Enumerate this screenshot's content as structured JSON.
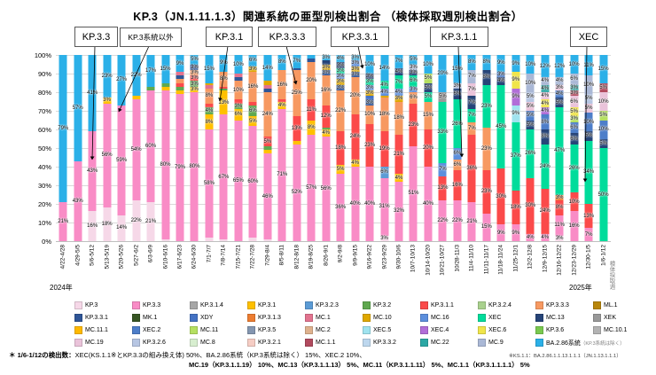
{
  "title": "KP.3（JN.1.11.1.3）関連系統の亜型別検出割合 （検体採取週別検出割合）",
  "annotations": [
    {
      "label": "KP.3.3"
    },
    {
      "label": "KP.3系統以外"
    },
    {
      "label": "KP.3.1"
    },
    {
      "label": "KP.3.3.3"
    },
    {
      "label": "KP.3.3.1"
    },
    {
      "label": "KP.3.1.1"
    },
    {
      "label": "XEC"
    }
  ],
  "y_axis": {
    "ticks": [
      "100%",
      "90%",
      "80%",
      "70%",
      "60%",
      "50%",
      "40%",
      "30%",
      "20%",
      "10%",
      "0%"
    ]
  },
  "x_axis": {
    "year_left": "2024年",
    "year_right": "2025年",
    "axis_title": "検体採取週"
  },
  "footnote": {
    "head": "＊ 1/6-1/12の検出数：",
    "line1": "XEC(KS.1.1※とKP.3.3の組み換え体) 50%、BA.2.86系統（KP.3系統は除く） 15%、XEC.2 10%、",
    "line2": "MC.19（KP.3.1.1.19） 10%、MC.13（KP.3.1.1.13） 5%、MC.11（KP.3.1.1.11） 5%、MC.1.1（KP.3.1.1.1.1） 5%",
    "note_right": "※KS.1.1：BA.2.86.1.1.13.1.1.1（JN.1.13.1.1.1）"
  },
  "chart_data": {
    "type": "bar",
    "subtype": "100%-stacked-column",
    "ylim": [
      0,
      100
    ],
    "grid": true,
    "legend_position": "bottom",
    "categories": [
      "4/22-4/28",
      "4/29-5/5",
      "5/6-5/12",
      "5/13-5/19",
      "5/20-5/26",
      "5/27-6/2",
      "6/3-6/9",
      "6/10-6/16",
      "6/17-6/23",
      "6/24-6/30",
      "7/1-7/7",
      "7/8-7/14",
      "7/15-7/21",
      "7/22-7/28",
      "7/29-8/4",
      "8/5-8/11",
      "8/12-8/18",
      "8/19-8/25",
      "8/26-9/1",
      "9/2-9/8",
      "9/9-9/15",
      "9/16-9/22",
      "9/23-9/29",
      "9/30-10/6",
      "10/7-10/13",
      "10/14-10/20",
      "10/21-10/27",
      "10/28-11/3",
      "11/4-11/10",
      "11/11-11/17",
      "11/18-11/24",
      "11/25-12/1",
      "12/2-12/8",
      "12/9-12/15",
      "12/16-12/22",
      "12/23-12/29",
      "12/30-1/5",
      "1/6-1/12"
    ],
    "series_legend": [
      {
        "name": "KP.3",
        "color": "#f6d8e8"
      },
      {
        "name": "KP.3.3",
        "color": "#f98cc6"
      },
      {
        "name": "KP.3.1.4",
        "color": "#a6a6a6"
      },
      {
        "name": "KP.3.1",
        "color": "#ffc000"
      },
      {
        "name": "KP.3.2.3",
        "color": "#5b9bd5"
      },
      {
        "name": "KP.3.2",
        "color": "#5fa84f"
      },
      {
        "name": "KP.3.1.1",
        "color": "#fb4a4a"
      },
      {
        "name": "KP.3.2.4",
        "color": "#a9d18e"
      },
      {
        "name": "KP.3.3.3",
        "color": "#f79961"
      },
      {
        "name": "ML.1",
        "color": "#b8860b"
      },
      {
        "name": "KP.3.3.1",
        "color": "#2f5597"
      },
      {
        "name": "MK.1",
        "color": "#375623"
      },
      {
        "name": "XDY",
        "color": "#4472c4"
      },
      {
        "name": "KP.3.1.3",
        "color": "#ed7d31"
      },
      {
        "name": "MC.1",
        "color": "#e2738f"
      },
      {
        "name": "MC.10",
        "color": "#dfa800"
      },
      {
        "name": "MC.16",
        "color": "#5c8fdd"
      },
      {
        "name": "XEC",
        "color": "#00dc9b"
      },
      {
        "name": "MC.13",
        "color": "#264478"
      },
      {
        "name": "XEK",
        "color": "#999999"
      },
      {
        "name": "MC.11.1",
        "color": "#ffb900"
      },
      {
        "name": "XEC.2",
        "color": "#4d7ec9"
      },
      {
        "name": "MC.11",
        "color": "#b5e061"
      },
      {
        "name": "KP.3.5",
        "color": "#8496b0"
      },
      {
        "name": "MC.2",
        "color": "#dfb28e"
      },
      {
        "name": "XEC.5",
        "color": "#9fe3ef"
      },
      {
        "name": "XEC.4",
        "color": "#b16dd8"
      },
      {
        "name": "XEC.6",
        "color": "#f0e54a"
      },
      {
        "name": "KP.3.6",
        "color": "#79c94f"
      },
      {
        "name": "MC.10.1",
        "color": "#b3b3b3"
      },
      {
        "name": "MC.19",
        "color": "#eac3da"
      },
      {
        "name": "KP.3.2.6",
        "color": "#b7c6e3"
      },
      {
        "name": "MC.8",
        "color": "#d7eecf"
      },
      {
        "name": "KP.3.2.1",
        "color": "#f6cdc4"
      },
      {
        "name": "MC.1.1",
        "color": "#b14a5e"
      },
      {
        "name": "KP.3.3.2",
        "color": "#bdd7ee"
      },
      {
        "name": "MC.22",
        "color": "#2ba7a4"
      },
      {
        "name": "MC.9",
        "color": "#aab8d6"
      },
      {
        "name": "BA.2.86系統",
        "color": "#2bb0e8",
        "sub": "（KP.3系統は除く）"
      }
    ],
    "bars": [
      [
        [
          "KP.3.3",
          21
        ],
        [
          "BA.2.86系統",
          79
        ]
      ],
      [
        [
          "KP.3.3",
          43
        ],
        [
          "BA.2.86系統",
          57
        ]
      ],
      [
        [
          "KP.3",
          16
        ],
        [
          "KP.3.3",
          43
        ],
        [
          "BA.2.86系統",
          41
        ]
      ],
      [
        [
          "KP.3",
          18
        ],
        [
          "KP.3.3",
          56
        ],
        [
          "KP.3.1",
          3
        ],
        [
          "BA.2.86系統",
          23
        ]
      ],
      [
        [
          "KP.3",
          14
        ],
        [
          "KP.3.3",
          59
        ],
        [
          "BA.2.86系統",
          27
        ]
      ],
      [
        [
          "KP.3",
          22
        ],
        [
          "KP.3.3",
          54
        ],
        [
          "KP.3.1",
          2
        ],
        [
          "BA.2.86系統",
          22
        ]
      ],
      [
        [
          "KP.3",
          21
        ],
        [
          "KP.3.3",
          60
        ],
        [
          "KP.3.2",
          2
        ],
        [
          "BA.2.86系統",
          17
        ]
      ],
      [
        [
          "KP.3",
          1
        ],
        [
          "KP.3.3",
          80
        ],
        [
          "KP.3.1",
          2
        ],
        [
          "KP.3.2",
          2
        ],
        [
          "BA.2.86系統",
          15
        ]
      ],
      [
        [
          "KP.3.3",
          79
        ],
        [
          "KP.3.1",
          2
        ],
        [
          "KP.3.2",
          2
        ],
        [
          "KP.3.1.1",
          2
        ],
        [
          "KP.3.3.3",
          2
        ],
        [
          "KP.3.3.1",
          2
        ],
        [
          "MC.1",
          2
        ],
        [
          "BA.2.86系統",
          9
        ]
      ],
      [
        [
          "KP.3.3",
          80
        ],
        [
          "KP.3.1",
          3
        ],
        [
          "KP.3.2",
          3
        ],
        [
          "KP.3.1.1",
          3
        ],
        [
          "KP.3.3.3",
          3
        ],
        [
          "KP.3.3.1",
          3
        ],
        [
          "BA.2.86系統",
          5
        ]
      ],
      [
        [
          "KP.3",
          2
        ],
        [
          "KP.3.3",
          58
        ],
        [
          "KP.3.1",
          8
        ],
        [
          "KP.3.2",
          4
        ],
        [
          "KP.3.1.1",
          2
        ],
        [
          "KP.3.3.3",
          8
        ],
        [
          "MC.1",
          2
        ],
        [
          "MC.10",
          1
        ],
        [
          "BA.2.86系統",
          15
        ]
      ],
      [
        [
          "KP.3",
          1
        ],
        [
          "KP.3.3",
          67
        ],
        [
          "KP.3.1",
          13
        ],
        [
          "KP.3.2",
          1
        ],
        [
          "KP.3.1.1",
          1
        ],
        [
          "KP.3.3.3",
          8
        ],
        [
          "BA.2.86系統",
          9
        ]
      ],
      [
        [
          "KP.3.3",
          65
        ],
        [
          "KP.3.1",
          6
        ],
        [
          "KP.3.2",
          3
        ],
        [
          "KP.3.1.1",
          2
        ],
        [
          "KP.3.3.3",
          10
        ],
        [
          "KP.3.3.1",
          2
        ],
        [
          "MC.1",
          2
        ],
        [
          "BA.2.86系統",
          10
        ]
      ],
      [
        [
          "KP.3",
          2
        ],
        [
          "KP.3.3",
          60
        ],
        [
          "KP.3.1",
          5
        ],
        [
          "KP.3.2",
          6
        ],
        [
          "KP.3.1.1",
          2
        ],
        [
          "KP.3.3.3",
          16
        ],
        [
          "MC.10",
          3
        ],
        [
          "BA.2.86系統",
          6
        ]
      ],
      [
        [
          "KP.3",
          1
        ],
        [
          "KP.3.3",
          46
        ],
        [
          "KP.3.1",
          2
        ],
        [
          "KP.3.2",
          2
        ],
        [
          "KP.3.1.1",
          5
        ],
        [
          "KP.3.3.3",
          24
        ],
        [
          "KP.3.3.1",
          2
        ],
        [
          "MC.1",
          2
        ],
        [
          "MC.10",
          2
        ],
        [
          "BA.2.86系統",
          14
        ]
      ],
      [
        [
          "KP.3.3",
          71
        ],
        [
          "KP.3.1",
          4
        ],
        [
          "KP.3.1.1",
          1
        ],
        [
          "KP.3.3.3",
          16
        ],
        [
          "BA.2.86系統",
          8
        ]
      ],
      [
        [
          "KP.3.3",
          52
        ],
        [
          "KP.3.1",
          2
        ],
        [
          "KP.3.1.1",
          13
        ],
        [
          "KP.3.3.3",
          25
        ],
        [
          "KP.3.3.1",
          1
        ],
        [
          "BA.2.86系統",
          7
        ]
      ],
      [
        [
          "KP.3.3",
          57
        ],
        [
          "KP.3.1",
          8
        ],
        [
          "KP.3.1.1",
          11
        ],
        [
          "KP.3.3.3",
          20
        ],
        [
          "KP.3.3.1",
          2
        ],
        [
          "BA.2.86系統",
          2
        ]
      ],
      [
        [
          "KP.3.3",
          56
        ],
        [
          "KP.3.1",
          4
        ],
        [
          "KP.3.2",
          1
        ],
        [
          "KP.3.1.1",
          12
        ],
        [
          "KP.3.3.3",
          16
        ],
        [
          "KP.3.3.1",
          3
        ],
        [
          "MC.10",
          3
        ],
        [
          "MC.13",
          2
        ],
        [
          "BA.2.86系統",
          3
        ]
      ],
      [
        [
          "KP.3.3",
          36
        ],
        [
          "KP.3.1",
          5
        ],
        [
          "KP.3.1.1",
          18
        ],
        [
          "KP.3.3.3",
          22
        ],
        [
          "KP.3.3.1",
          3
        ],
        [
          "MC.10",
          3
        ],
        [
          "MC.16",
          3
        ],
        [
          "XEC",
          3
        ],
        [
          "MC.13",
          3
        ],
        [
          "BA.2.86系統",
          4
        ]
      ],
      [
        [
          "KP.3.3",
          40
        ],
        [
          "KP.3.1",
          4
        ],
        [
          "KP.3.1.1",
          24
        ],
        [
          "KP.3.3.3",
          20
        ],
        [
          "KP.3.3.1",
          3
        ],
        [
          "MC.10",
          3
        ],
        [
          "MC.16",
          3
        ],
        [
          "BA.2.86系統",
          3
        ]
      ],
      [
        [
          "KP.3.3",
          40
        ],
        [
          "KP.3.1.1",
          23
        ],
        [
          "KP.3.3.3",
          10
        ],
        [
          "KP.3.3.1",
          3
        ],
        [
          "XDY",
          2
        ],
        [
          "MC.10",
          3
        ],
        [
          "MC.16",
          3
        ],
        [
          "XEC",
          3
        ],
        [
          "MC.13",
          3
        ],
        [
          "BA.2.86系統",
          10
        ]
      ],
      [
        [
          "KP.3",
          3
        ],
        [
          "KP.3.3",
          31
        ],
        [
          "KP.3.2.3",
          6
        ],
        [
          "KP.3.1.1",
          19
        ],
        [
          "KP.3.3.3",
          18
        ],
        [
          "MC.10",
          1
        ],
        [
          "MC.16",
          4
        ],
        [
          "XEC",
          4
        ],
        [
          "BA.2.86系統",
          14
        ]
      ],
      [
        [
          "KP.3.3",
          32
        ],
        [
          "KP.3.1",
          4
        ],
        [
          "KP.3.1.1",
          21
        ],
        [
          "KP.3.3.3",
          18
        ],
        [
          "MC.10",
          3
        ],
        [
          "MC.16",
          4
        ],
        [
          "XEC",
          7
        ],
        [
          "MC.13",
          4
        ],
        [
          "BA.2.86系統",
          7
        ]
      ],
      [
        [
          "KP.3.3",
          51
        ],
        [
          "KP.3.1.1",
          23
        ],
        [
          "KP.3.3.3",
          6
        ],
        [
          "MC.16",
          3
        ],
        [
          "XEC",
          6
        ],
        [
          "MC.13",
          3
        ],
        [
          "MC.9",
          3
        ],
        [
          "BA.2.86系統",
          5
        ]
      ],
      [
        [
          "KP.3.3",
          40
        ],
        [
          "KP.3.1.1",
          20
        ],
        [
          "KP.3.3.3",
          15
        ],
        [
          "XEC",
          5
        ],
        [
          "MC.13",
          5
        ],
        [
          "MC.11",
          5
        ],
        [
          "BA.2.86系統",
          10
        ]
      ],
      [
        [
          "KP.3.3",
          22
        ],
        [
          "KP.3.1.1",
          13
        ],
        [
          "MC.16",
          7
        ],
        [
          "XEC",
          33
        ],
        [
          "XEK",
          5
        ],
        [
          "BA.2.86系統",
          20
        ]
      ],
      [
        [
          "KP.3.3",
          22
        ],
        [
          "KP.3.1.1",
          16
        ],
        [
          "KP.3.3.3",
          6
        ],
        [
          "MC.16",
          6
        ],
        [
          "XEC",
          26
        ],
        [
          "MC.13",
          6
        ],
        [
          "MC.9",
          3
        ],
        [
          "BA.2.86系統",
          15
        ]
      ],
      [
        [
          "KP.3.3",
          21
        ],
        [
          "KP.3.1.1",
          36
        ],
        [
          "KP.3.3.3",
          7
        ],
        [
          "XEC",
          7
        ],
        [
          "MC.13",
          7
        ],
        [
          "MC.19",
          7
        ],
        [
          "MC.9",
          7
        ],
        [
          "BA.2.86系統",
          8
        ]
      ],
      [
        [
          "KP.3.3",
          15
        ],
        [
          "KP.3.1.1",
          23
        ],
        [
          "KP.3.3.3",
          23
        ],
        [
          "XEC",
          23
        ],
        [
          "MC.13",
          8
        ],
        [
          "BA.2.86系統",
          8
        ]
      ],
      [
        [
          "KP.3.3",
          9
        ],
        [
          "KP.3.1.1",
          30
        ],
        [
          "XEC",
          45
        ],
        [
          "MC.13",
          4
        ],
        [
          "XEC.2",
          3
        ],
        [
          "BA.2.86系統",
          9
        ]
      ],
      [
        [
          "KP.3.3",
          9
        ],
        [
          "KP.3.1.1",
          18
        ],
        [
          "XEC",
          37
        ],
        [
          "XEC.5",
          9
        ],
        [
          "XEC.4",
          9
        ],
        [
          "XEC.6",
          9
        ],
        [
          "BA.2.86系統",
          9
        ]
      ],
      [
        [
          "KP.3.3",
          4
        ],
        [
          "KP.3.1.1",
          30
        ],
        [
          "XEC",
          26
        ],
        [
          "MC.13",
          5
        ],
        [
          "XEC.2",
          5
        ],
        [
          "MC.19",
          5
        ],
        [
          "KP.3.2.6",
          5
        ],
        [
          "MC.9",
          10
        ],
        [
          "BA.2.86系統",
          10
        ]
      ],
      [
        [
          "KP.3.3",
          4
        ],
        [
          "KP.3.1.1",
          24
        ],
        [
          "XEC",
          24
        ],
        [
          "MC.13",
          8
        ],
        [
          "XEC.2",
          8
        ],
        [
          "XEC.4",
          4
        ],
        [
          "XEC.6",
          4
        ],
        [
          "MC.19",
          4
        ],
        [
          "MC.22",
          4
        ],
        [
          "MC.9",
          4
        ],
        [
          "BA.2.86系統",
          12
        ]
      ],
      [
        [
          "KP.3",
          3
        ],
        [
          "KP.3.3",
          11
        ],
        [
          "KP.3.1.1",
          8
        ],
        [
          "KP.3.1.3",
          3
        ],
        [
          "XEC",
          47
        ],
        [
          "MC.13",
          5
        ],
        [
          "XEC.2",
          4
        ],
        [
          "MC.19",
          3
        ],
        [
          "MC.9",
          4
        ],
        [
          "BA.2.86系統",
          12
        ]
      ],
      [
        [
          "KP.3.3",
          16
        ],
        [
          "KP.3.1.1",
          10
        ],
        [
          "XEC",
          26
        ],
        [
          "MC.13",
          6
        ],
        [
          "XEC.2",
          6
        ],
        [
          "MC.11",
          3
        ],
        [
          "XEC.6",
          5
        ],
        [
          "MC.19",
          6
        ],
        [
          "MC.1.1",
          3
        ],
        [
          "MC.22",
          3
        ],
        [
          "MC.9",
          6
        ],
        [
          "BA.2.86系統",
          10
        ]
      ],
      [
        [
          "KP.3.3",
          7
        ],
        [
          "KP.3.1.1",
          13
        ],
        [
          "XEC",
          34
        ],
        [
          "MC.13",
          5
        ],
        [
          "XEC.2",
          10
        ],
        [
          "MC.19",
          5
        ],
        [
          "KP.3.2.6",
          5
        ],
        [
          "MC.9",
          10
        ],
        [
          "BA.2.86系統",
          11
        ]
      ],
      [
        [
          "XEC",
          50
        ],
        [
          "MC.13",
          5
        ],
        [
          "XEC.2",
          10
        ],
        [
          "MC.11",
          5
        ],
        [
          "MC.19",
          10
        ],
        [
          "MC.1.1",
          5
        ],
        [
          "BA.2.86系統",
          15
        ]
      ]
    ]
  }
}
